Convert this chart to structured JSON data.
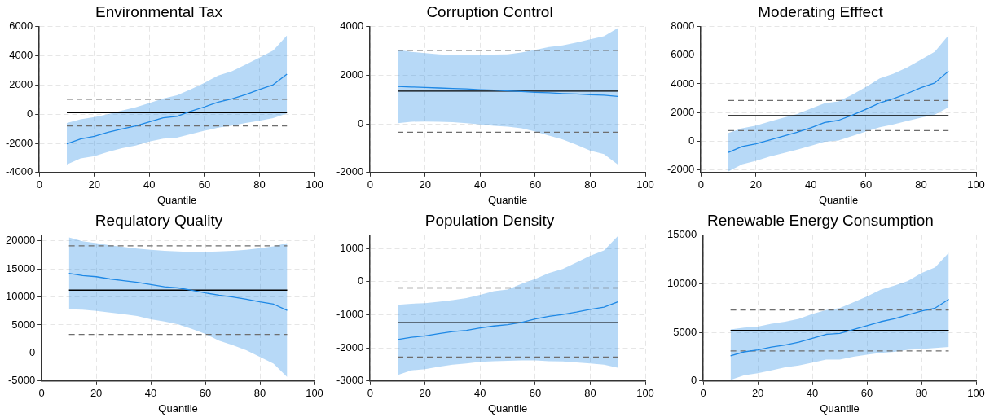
{
  "chart_data": [
    {
      "type": "line",
      "title": "Environmental Tax",
      "xlabel": "Quantile",
      "xlim": [
        0,
        100
      ],
      "xticks": [
        0,
        20,
        40,
        60,
        80,
        100
      ],
      "ylim": [
        -4000,
        6000
      ],
      "yticks": [
        -4000,
        -2000,
        0,
        2000,
        4000,
        6000
      ],
      "grid": true,
      "legend": false,
      "x": [
        10,
        15,
        20,
        25,
        30,
        35,
        40,
        45,
        50,
        55,
        60,
        65,
        70,
        75,
        80,
        85,
        90
      ],
      "series": [
        {
          "color": "#1e88e5",
          "values": [
            -2040,
            -1700,
            -1520,
            -1240,
            -1020,
            -800,
            -520,
            -250,
            -150,
            200,
            500,
            830,
            1050,
            1350,
            1700,
            2020,
            2750
          ],
          "lower": [
            -3450,
            -3030,
            -2880,
            -2590,
            -2330,
            -2150,
            -1880,
            -1680,
            -1610,
            -1370,
            -1140,
            -920,
            -780,
            -610,
            -450,
            -270,
            50
          ],
          "upper": [
            -600,
            -350,
            -200,
            0,
            250,
            470,
            760,
            1070,
            1300,
            1700,
            2150,
            2650,
            2940,
            3400,
            3880,
            4370,
            5400
          ]
        },
        {
          "type": "line",
          "color": "#000000",
          "values": [
            110,
            110,
            110,
            110,
            110,
            110,
            110,
            110,
            110,
            110,
            110,
            110,
            110,
            110,
            110,
            110,
            110
          ]
        },
        {
          "type": "line",
          "color": "#6e6e6e",
          "line_style": "dashed",
          "values": [
            1030,
            1030,
            1030,
            1030,
            1030,
            1030,
            1030,
            1030,
            1030,
            1030,
            1030,
            1030,
            1030,
            1030,
            1030,
            1030,
            1030
          ]
        },
        {
          "type": "line",
          "color": "#6e6e6e",
          "line_style": "dashed",
          "values": [
            -800,
            -800,
            -800,
            -800,
            -800,
            -800,
            -800,
            -800,
            -800,
            -800,
            -800,
            -800,
            -800,
            -800,
            -800,
            -800,
            -800
          ]
        }
      ]
    },
    {
      "type": "line",
      "title": "Corruption Control",
      "xlabel": "Quantile",
      "xlim": [
        0,
        100
      ],
      "xticks": [
        0,
        20,
        40,
        60,
        80,
        100
      ],
      "ylim": [
        -2000,
        4000
      ],
      "yticks": [
        -2000,
        0,
        2000,
        4000
      ],
      "grid": true,
      "legend": false,
      "x": [
        10,
        15,
        20,
        25,
        30,
        35,
        40,
        45,
        50,
        55,
        60,
        65,
        70,
        75,
        80,
        85,
        90
      ],
      "series": [
        {
          "color": "#1e88e5",
          "values": [
            1540,
            1520,
            1500,
            1480,
            1460,
            1440,
            1410,
            1390,
            1360,
            1330,
            1300,
            1280,
            1250,
            1230,
            1200,
            1180,
            1130
          ],
          "lower": [
            30,
            90,
            100,
            90,
            70,
            30,
            -20,
            -80,
            -110,
            -180,
            -310,
            -480,
            -640,
            -860,
            -1100,
            -1240,
            -1670
          ],
          "upper": [
            3050,
            2960,
            2910,
            2860,
            2830,
            2820,
            2830,
            2850,
            2860,
            2940,
            3050,
            3160,
            3230,
            3350,
            3480,
            3610,
            3940
          ]
        },
        {
          "type": "line",
          "color": "#000000",
          "values": [
            1350,
            1350,
            1350,
            1350,
            1350,
            1350,
            1350,
            1350,
            1350,
            1350,
            1350,
            1350,
            1350,
            1350,
            1350,
            1350,
            1350
          ]
        },
        {
          "type": "line",
          "color": "#6e6e6e",
          "line_style": "dashed",
          "values": [
            3030,
            3030,
            3030,
            3030,
            3030,
            3030,
            3030,
            3030,
            3030,
            3030,
            3030,
            3030,
            3030,
            3030,
            3030,
            3030,
            3030
          ]
        },
        {
          "type": "line",
          "color": "#6e6e6e",
          "line_style": "dashed",
          "values": [
            -340,
            -340,
            -340,
            -340,
            -340,
            -340,
            -340,
            -340,
            -340,
            -340,
            -340,
            -340,
            -340,
            -340,
            -340,
            -340,
            -340
          ]
        }
      ]
    },
    {
      "type": "line",
      "title": "Moderating Efffect",
      "xlabel": "Quantile",
      "xlim": [
        0,
        100
      ],
      "xticks": [
        0,
        20,
        40,
        60,
        80,
        100
      ],
      "ylim": [
        -2200,
        8000
      ],
      "yticks": [
        -2000,
        0,
        2000,
        4000,
        6000,
        8000
      ],
      "grid": true,
      "legend": false,
      "x": [
        10,
        15,
        20,
        25,
        30,
        35,
        40,
        45,
        50,
        55,
        60,
        65,
        70,
        75,
        80,
        85,
        90
      ],
      "series": [
        {
          "color": "#1e88e5",
          "values": [
            -790,
            -380,
            -200,
            70,
            350,
            620,
            930,
            1300,
            1450,
            1810,
            2230,
            2670,
            2970,
            3330,
            3740,
            4070,
            4890
          ],
          "lower": [
            -2120,
            -1630,
            -1390,
            -1080,
            -840,
            -600,
            -330,
            -50,
            40,
            350,
            660,
            970,
            1170,
            1410,
            1630,
            1850,
            2360
          ],
          "upper": [
            570,
            900,
            1080,
            1360,
            1630,
            1890,
            2270,
            2640,
            2780,
            3240,
            3790,
            4380,
            4710,
            5150,
            5700,
            6250,
            7400
          ]
        },
        {
          "type": "line",
          "color": "#000000",
          "values": [
            1780,
            1780,
            1780,
            1780,
            1780,
            1780,
            1780,
            1780,
            1780,
            1780,
            1780,
            1780,
            1780,
            1780,
            1780,
            1780,
            1780
          ]
        },
        {
          "type": "line",
          "color": "#6e6e6e",
          "line_style": "dashed",
          "values": [
            2840,
            2840,
            2840,
            2840,
            2840,
            2840,
            2840,
            2840,
            2840,
            2840,
            2840,
            2840,
            2840,
            2840,
            2840,
            2840,
            2840
          ]
        },
        {
          "type": "line",
          "color": "#6e6e6e",
          "line_style": "dashed",
          "values": [
            730,
            730,
            730,
            730,
            730,
            730,
            730,
            730,
            730,
            730,
            730,
            730,
            730,
            730,
            730,
            730,
            730
          ]
        }
      ]
    },
    {
      "type": "line",
      "title": "Requlatory Quality",
      "xlabel": "Quantile",
      "xlim": [
        0,
        100
      ],
      "xticks": [
        0,
        20,
        40,
        60,
        80,
        100
      ],
      "ylim": [
        -5000,
        21000
      ],
      "yticks": [
        -5000,
        0,
        5000,
        10000,
        15000,
        20000
      ],
      "grid": true,
      "legend": false,
      "x": [
        10,
        15,
        20,
        25,
        30,
        35,
        40,
        45,
        50,
        55,
        60,
        65,
        70,
        75,
        80,
        85,
        90
      ],
      "series": [
        {
          "color": "#1e88e5",
          "values": [
            14200,
            13800,
            13600,
            13200,
            12900,
            12600,
            12200,
            11800,
            11600,
            11200,
            10700,
            10300,
            10000,
            9600,
            9100,
            8700,
            7600
          ],
          "lower": [
            7800,
            7700,
            7500,
            7200,
            6900,
            6600,
            6000,
            5600,
            5100,
            4300,
            3400,
            2200,
            1400,
            500,
            -700,
            -1900,
            -4300
          ],
          "upper": [
            20600,
            19900,
            19600,
            19200,
            18900,
            18600,
            18400,
            18200,
            18100,
            18000,
            18000,
            18100,
            18200,
            18400,
            18700,
            19000,
            19600
          ]
        },
        {
          "type": "line",
          "color": "#000000",
          "values": [
            11200,
            11200,
            11200,
            11200,
            11200,
            11200,
            11200,
            11200,
            11200,
            11200,
            11200,
            11200,
            11200,
            11200,
            11200,
            11200,
            11200
          ]
        },
        {
          "type": "line",
          "color": "#6e6e6e",
          "line_style": "dashed",
          "values": [
            19100,
            19100,
            19100,
            19100,
            19100,
            19100,
            19100,
            19100,
            19100,
            19100,
            19100,
            19100,
            19100,
            19100,
            19100,
            19100,
            19100
          ]
        },
        {
          "type": "line",
          "color": "#6e6e6e",
          "line_style": "dashed",
          "values": [
            3300,
            3300,
            3300,
            3300,
            3300,
            3300,
            3300,
            3300,
            3300,
            3300,
            3300,
            3300,
            3300,
            3300,
            3300,
            3300,
            3300
          ]
        }
      ]
    },
    {
      "type": "line",
      "title": "Population Density",
      "xlabel": "Quantile",
      "xlim": [
        0,
        100
      ],
      "xticks": [
        0,
        20,
        40,
        60,
        80,
        100
      ],
      "ylim": [
        -3000,
        1400
      ],
      "yticks": [
        -3000,
        -2000,
        -1000,
        0,
        1000
      ],
      "grid": true,
      "legend": false,
      "x": [
        10,
        15,
        20,
        25,
        30,
        35,
        40,
        45,
        50,
        55,
        60,
        65,
        70,
        75,
        80,
        85,
        90
      ],
      "series": [
        {
          "color": "#1e88e5",
          "values": [
            -1750,
            -1680,
            -1640,
            -1570,
            -1510,
            -1470,
            -1400,
            -1340,
            -1300,
            -1230,
            -1130,
            -1050,
            -990,
            -920,
            -840,
            -770,
            -610
          ],
          "lower": [
            -2820,
            -2680,
            -2640,
            -2570,
            -2510,
            -2470,
            -2420,
            -2400,
            -2390,
            -2380,
            -2380,
            -2400,
            -2410,
            -2440,
            -2470,
            -2510,
            -2600
          ],
          "upper": [
            -700,
            -670,
            -650,
            -610,
            -560,
            -500,
            -400,
            -290,
            -240,
            -70,
            80,
            260,
            380,
            580,
            780,
            940,
            1370
          ]
        },
        {
          "type": "line",
          "color": "#000000",
          "values": [
            -1240,
            -1240,
            -1240,
            -1240,
            -1240,
            -1240,
            -1240,
            -1240,
            -1240,
            -1240,
            -1240,
            -1240,
            -1240,
            -1240,
            -1240,
            -1240,
            -1240
          ]
        },
        {
          "type": "line",
          "color": "#6e6e6e",
          "line_style": "dashed",
          "values": [
            -190,
            -190,
            -190,
            -190,
            -190,
            -190,
            -190,
            -190,
            -190,
            -190,
            -190,
            -190,
            -190,
            -190,
            -190,
            -190,
            -190
          ]
        },
        {
          "type": "line",
          "color": "#6e6e6e",
          "line_style": "dashed",
          "values": [
            -2280,
            -2280,
            -2280,
            -2280,
            -2280,
            -2280,
            -2280,
            -2280,
            -2280,
            -2280,
            -2280,
            -2280,
            -2280,
            -2280,
            -2280,
            -2280,
            -2280
          ]
        }
      ]
    },
    {
      "type": "line",
      "title": "Renewable Energy Consumption",
      "xlabel": "Quantile",
      "xlim": [
        0,
        100
      ],
      "xticks": [
        0,
        20,
        40,
        60,
        80,
        100
      ],
      "ylim": [
        0,
        15000
      ],
      "yticks": [
        0,
        5000,
        10000,
        15000
      ],
      "grid": true,
      "legend": false,
      "x": [
        10,
        15,
        20,
        25,
        30,
        35,
        40,
        45,
        50,
        55,
        60,
        65,
        70,
        75,
        80,
        85,
        90
      ],
      "series": [
        {
          "color": "#1e88e5",
          "values": [
            2600,
            3000,
            3200,
            3500,
            3700,
            4000,
            4400,
            4800,
            4900,
            5300,
            5700,
            6100,
            6400,
            6800,
            7200,
            7500,
            8400
          ],
          "lower": [
            100,
            600,
            800,
            1100,
            1400,
            1600,
            1900,
            2200,
            2200,
            2500,
            2700,
            2900,
            3000,
            3200,
            3300,
            3400,
            3500
          ],
          "upper": [
            5300,
            5500,
            5600,
            5900,
            6100,
            6400,
            6900,
            7300,
            7500,
            8100,
            8700,
            9400,
            9800,
            10300,
            11100,
            11700,
            13200
          ]
        },
        {
          "type": "line",
          "color": "#000000",
          "values": [
            5200,
            5200,
            5200,
            5200,
            5200,
            5200,
            5200,
            5200,
            5200,
            5200,
            5200,
            5200,
            5200,
            5200,
            5200,
            5200,
            5200
          ]
        },
        {
          "type": "line",
          "color": "#6e6e6e",
          "line_style": "dashed",
          "values": [
            7300,
            7300,
            7300,
            7300,
            7300,
            7300,
            7300,
            7300,
            7300,
            7300,
            7300,
            7300,
            7300,
            7300,
            7300,
            7300,
            7300
          ]
        },
        {
          "type": "line",
          "color": "#6e6e6e",
          "line_style": "dashed",
          "values": [
            3100,
            3100,
            3100,
            3100,
            3100,
            3100,
            3100,
            3100,
            3100,
            3100,
            3100,
            3100,
            3100,
            3100,
            3100,
            3100,
            3100
          ]
        }
      ]
    }
  ]
}
